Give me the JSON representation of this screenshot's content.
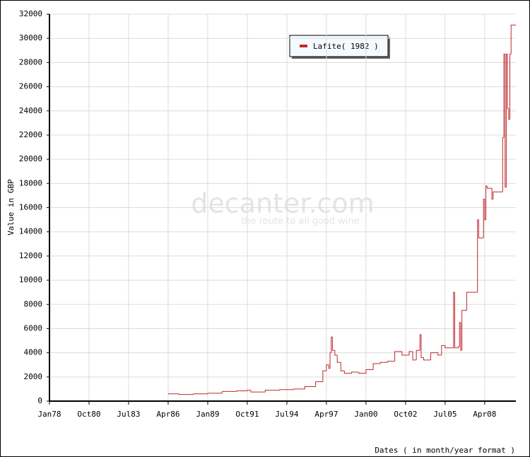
{
  "chart_data": {
    "type": "step",
    "y_label": "Value in GBP",
    "x_label": "Dates ( in month/year format )",
    "watermark": "decanter.com",
    "watermark_tagline": "the route to all good wine",
    "xlim": [
      "Jan78",
      "Jun10"
    ],
    "xticks": [
      "Jan78",
      "Oct80",
      "Jul83",
      "Apr86",
      "Jan89",
      "Oct91",
      "Jul94",
      "Apr97",
      "Jan00",
      "Oct02",
      "Jul05",
      "Apr08"
    ],
    "ylim": [
      0,
      32000
    ],
    "yticks": [
      0,
      2000,
      4000,
      6000,
      8000,
      10000,
      12000,
      14000,
      16000,
      18000,
      20000,
      22000,
      24000,
      26000,
      28000,
      30000,
      32000
    ],
    "grid": true,
    "legend": "top-center",
    "series": [
      {
        "name": "Lafite( 1982 )",
        "color": "#c0272d",
        "x": [
          "Apr86",
          "Jan87",
          "Jan88",
          "Jan89",
          "Jan90",
          "Jan91",
          "Oct91",
          "Jan92",
          "Jan93",
          "Jan94",
          "Jan95",
          "Oct95",
          "Jul96",
          "Jan97",
          "Apr97",
          "Jun97",
          "Jul97",
          "Aug97",
          "Sep97",
          "Nov97",
          "Jan98",
          "Apr98",
          "Jul98",
          "Jan99",
          "Jul99",
          "Jan00",
          "Jul00",
          "Jan01",
          "Jul01",
          "Jan02",
          "Jul02",
          "Jan03",
          "Apr03",
          "Jul03",
          "Oct03",
          "Nov03",
          "Jan04",
          "Jul04",
          "Jan05",
          "Apr05",
          "Jul05",
          "Jan06",
          "Feb06",
          "Mar06",
          "Jun06",
          "Jul06",
          "Aug06",
          "Sep06",
          "Jan07",
          "Oct07",
          "Nov07",
          "Mar08",
          "Apr08",
          "May08",
          "Jun08",
          "Oct08",
          "Nov08",
          "Jul09",
          "Aug09",
          "Sep09",
          "Oct09",
          "Nov09",
          "Dec09",
          "Jan10",
          "Feb10"
        ],
        "values": [
          600,
          550,
          600,
          650,
          800,
          850,
          900,
          750,
          900,
          950,
          1000,
          1200,
          1600,
          2500,
          3000,
          2700,
          4000,
          5300,
          4200,
          3800,
          3200,
          2500,
          2300,
          2400,
          2300,
          2600,
          3100,
          3200,
          3300,
          4100,
          3800,
          4100,
          3400,
          4200,
          5500,
          3600,
          3400,
          4000,
          3800,
          4600,
          4400,
          4400,
          9000,
          4400,
          4500,
          6500,
          4200,
          7500,
          9000,
          15000,
          13500,
          16700,
          15000,
          17800,
          17600,
          16700,
          17300,
          21800,
          28700,
          17700,
          28700,
          24200,
          23300,
          28700,
          31100
        ]
      }
    ]
  }
}
